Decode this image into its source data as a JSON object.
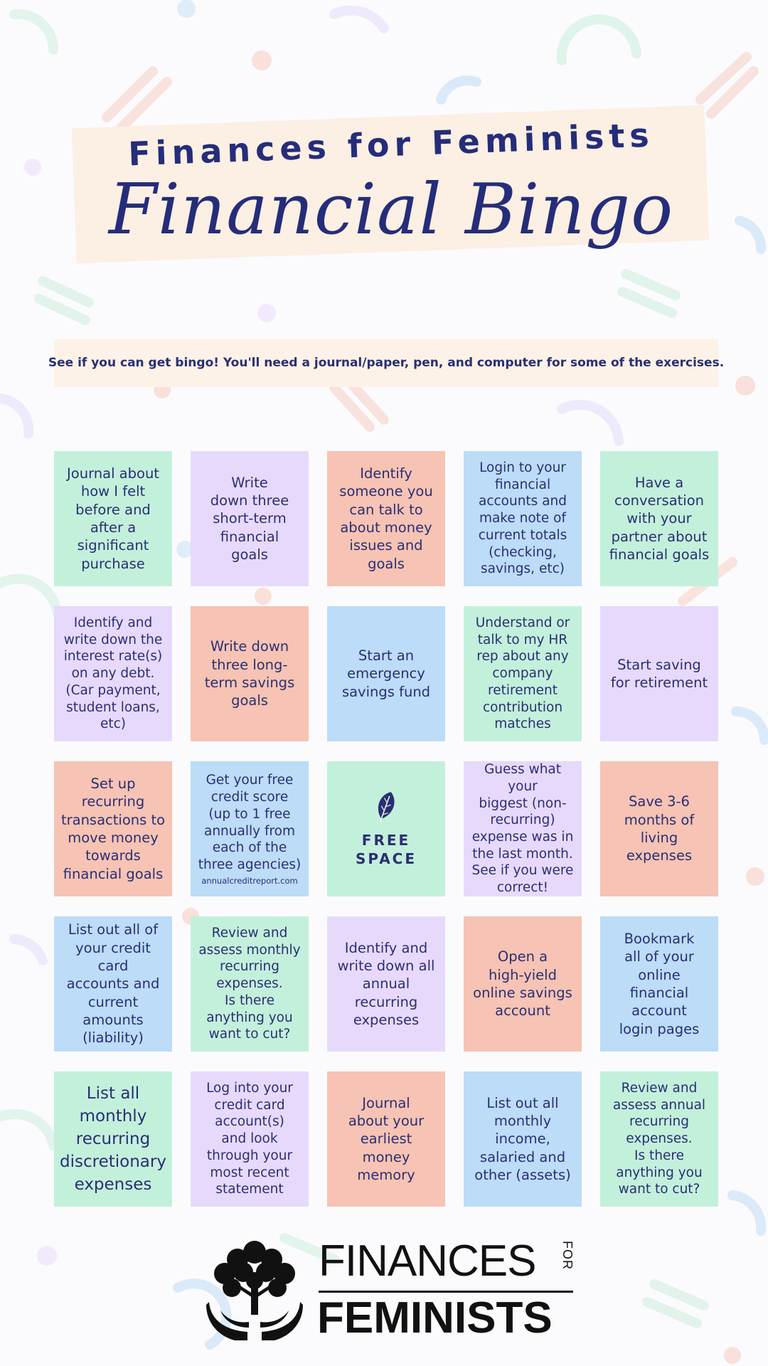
{
  "header": {
    "title": "Finances for Feminists",
    "subtitle": "Financial Bingo"
  },
  "instructions": "See if you can get bingo! You'll need a journal/paper, pen, and computer for some of the exercises.",
  "colors": {
    "text": "#2a2f73",
    "green": "#c3f0db",
    "purple": "#e7d9fb",
    "salmon": "#f6c3b4",
    "blue": "#bcdcf7",
    "title_card": "#fcefe3"
  },
  "bingo": {
    "rows": [
      [
        {
          "text": "Journal about\nhow I felt\nbefore and\nafter a\nsignificant\npurchase",
          "color": "green"
        },
        {
          "text": "Write\ndown three\nshort-term\nfinancial\ngoals",
          "color": "purple"
        },
        {
          "text": "Identify\nsomeone you\ncan talk to\nabout money\nissues and goals",
          "color": "salmon"
        },
        {
          "text": "Login to your\nfinancial\naccounts and\nmake note of\ncurrent totals\n(checking,\nsavings, etc)",
          "color": "blue"
        },
        {
          "text": "Have a\nconversation\nwith your\npartner about\nfinancial goals",
          "color": "green"
        }
      ],
      [
        {
          "text": "Identify and\nwrite down the\ninterest rate(s)\non any debt.\n(Car payment,\nstudent loans,\netc)",
          "color": "purple"
        },
        {
          "text": "Write down\nthree long-\nterm savings\ngoals",
          "color": "salmon"
        },
        {
          "text": "Start an\nemergency\nsavings fund",
          "color": "blue"
        },
        {
          "text": "Understand or\ntalk to my HR\nrep about any\ncompany\nretirement\ncontribution\nmatches",
          "color": "green"
        },
        {
          "text": "Start saving\nfor retirement",
          "color": "purple"
        }
      ],
      [
        {
          "text": "Set up recurring\ntransactions to\nmove money\ntowards\nfinancial goals",
          "color": "salmon"
        },
        {
          "text": "Get your free\ncredit score\n(up to 1 free\nannually from\neach of the\nthree agencies)",
          "note": "annualcreditreport.com",
          "color": "blue"
        },
        {
          "free": true,
          "text": "FREE\nSPACE",
          "icon": "leaf-icon",
          "color": "green"
        },
        {
          "text": "Guess what your\nbiggest (non-\nrecurring)\nexpense was in\nthe last month.\nSee if you were\ncorrect!",
          "color": "purple"
        },
        {
          "text": "Save 3-6\nmonths of\nliving\nexpenses",
          "color": "salmon"
        }
      ],
      [
        {
          "text": "List out all of\nyour credit card\naccounts and\ncurrent amounts\n(liability)",
          "color": "blue"
        },
        {
          "text": "Review and\nassess monthly\nrecurring\nexpenses.\nIs there\nanything you\nwant to cut?",
          "color": "green"
        },
        {
          "text": "Identify and\nwrite down all\nannual\nrecurring\nexpenses",
          "color": "purple"
        },
        {
          "text": "Open a\nhigh-yield\nonline savings\naccount",
          "color": "salmon"
        },
        {
          "text": "Bookmark\nall of your\nonline\nfinancial\naccount\nlogin pages",
          "color": "blue"
        }
      ],
      [
        {
          "text": "List all\nmonthly\nrecurring\ndiscretionary\nexpenses",
          "color": "green",
          "big": true
        },
        {
          "text": "Log into your\ncredit card\naccount(s)\nand look\nthrough your\nmost recent\nstatement",
          "color": "purple"
        },
        {
          "text": "Journal\nabout your\nearliest\nmoney\nmemory",
          "color": "salmon"
        },
        {
          "text": "List out all\nmonthly income,\nsalaried and\nother (assets)",
          "color": "blue"
        },
        {
          "text": "Review and\nassess annual\nrecurring\nexpenses.\nIs there\nanything you\nwant to cut?",
          "color": "green"
        }
      ]
    ]
  },
  "footer": {
    "logo_top": "FINANCES",
    "logo_for": "FOR",
    "logo_bottom": "FEMINISTS",
    "logo_icon": "tree-hands-icon"
  }
}
